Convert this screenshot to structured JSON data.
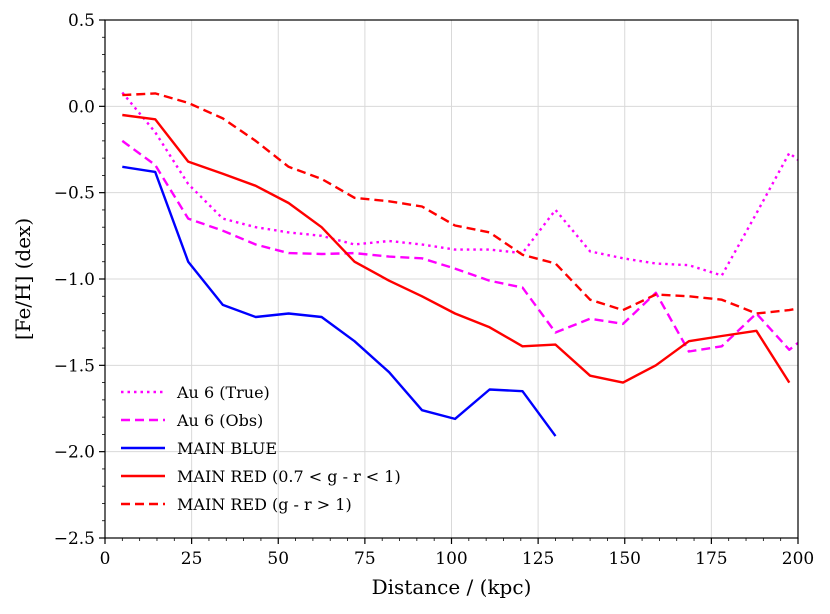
{
  "chart_data": {
    "type": "line",
    "title": "",
    "xlabel": "Distance / (kpc)",
    "ylabel": "[Fe/H] (dex)",
    "xlim": [
      0,
      200
    ],
    "ylim": [
      -2.5,
      0.5
    ],
    "grid": true,
    "legend_position": "lower-left",
    "x_ticks": [
      {
        "value": 0,
        "label": "0"
      },
      {
        "value": 25,
        "label": "25"
      },
      {
        "value": 50,
        "label": "50"
      },
      {
        "value": 75,
        "label": "75"
      },
      {
        "value": 100,
        "label": "100"
      },
      {
        "value": 125,
        "label": "125"
      },
      {
        "value": 150,
        "label": "150"
      },
      {
        "value": 175,
        "label": "175"
      },
      {
        "value": 200,
        "label": "200"
      }
    ],
    "y_ticks": [
      {
        "value": 0.5,
        "label": "0.5"
      },
      {
        "value": 0.0,
        "label": "0.0"
      },
      {
        "value": -0.5,
        "label": "−0.5"
      },
      {
        "value": -1.0,
        "label": "−1.0"
      },
      {
        "value": -1.5,
        "label": "−1.5"
      },
      {
        "value": -2.0,
        "label": "−2.0"
      },
      {
        "value": -2.5,
        "label": "−2.5"
      }
    ],
    "series": [
      {
        "name": "Au 6 (True)",
        "color": "#ff00ff",
        "style": "dotted",
        "x": [
          5,
          14.5,
          24,
          34,
          43.5,
          53,
          62.5,
          72,
          82,
          91.5,
          101,
          111,
          120.5,
          130,
          140,
          149.5,
          159,
          168.5,
          178,
          188,
          197.5,
          200
        ],
        "y": [
          0.08,
          -0.15,
          -0.45,
          -0.65,
          -0.7,
          -0.73,
          -0.75,
          -0.8,
          -0.78,
          -0.8,
          -0.83,
          -0.83,
          -0.85,
          -0.6,
          -0.84,
          -0.88,
          -0.91,
          -0.92,
          -0.98,
          -0.62,
          -0.27,
          -0.31
        ]
      },
      {
        "name": "Au 6 (Obs)",
        "color": "#ff00ff",
        "style": "dashed",
        "x": [
          5,
          14.5,
          24,
          34,
          43.5,
          53,
          62.5,
          72,
          82,
          91.5,
          101,
          111,
          120.5,
          130,
          140,
          149.5,
          159,
          168.5,
          178,
          188,
          197.5,
          200
        ],
        "y": [
          -0.2,
          -0.34,
          -0.65,
          -0.72,
          -0.8,
          -0.85,
          -0.855,
          -0.85,
          -0.87,
          -0.88,
          -0.94,
          -1.01,
          -1.05,
          -1.31,
          -1.23,
          -1.26,
          -1.08,
          -1.42,
          -1.39,
          -1.2,
          -1.41,
          -1.37
        ]
      },
      {
        "name": "MAIN BLUE",
        "color": "#0000ff",
        "style": "solid",
        "x": [
          5,
          14.5,
          24,
          34,
          43.5,
          53,
          62.5,
          72,
          82,
          91.5,
          101,
          111,
          120.5,
          130
        ],
        "y": [
          -0.35,
          -0.38,
          -0.9,
          -1.15,
          -1.22,
          -1.2,
          -1.22,
          -1.36,
          -1.54,
          -1.76,
          -1.81,
          -1.64,
          -1.65,
          -1.91
        ]
      },
      {
        "name": "MAIN RED (0.7 < g - r < 1)",
        "color": "#ff0000",
        "style": "solid",
        "x": [
          5,
          14.5,
          24,
          34,
          43.5,
          53,
          62.5,
          72,
          82,
          91.5,
          101,
          111,
          120.5,
          130,
          140,
          149.5,
          159,
          168.5,
          178,
          188,
          197.5
        ],
        "y": [
          -0.05,
          -0.075,
          -0.32,
          -0.39,
          -0.46,
          -0.56,
          -0.7,
          -0.9,
          -1.01,
          -1.1,
          -1.2,
          -1.28,
          -1.39,
          -1.38,
          -1.56,
          -1.6,
          -1.5,
          -1.36,
          -1.33,
          -1.3,
          -1.6
        ]
      },
      {
        "name": "MAIN RED (g - r > 1)",
        "color": "#ff0000",
        "style": "dashed",
        "x": [
          5,
          14.5,
          24,
          34,
          43.5,
          53,
          62.5,
          72,
          82,
          91.5,
          101,
          111,
          120.5,
          130,
          140,
          149.5,
          159,
          168.5,
          178,
          188,
          197.5,
          200
        ],
        "y": [
          0.065,
          0.075,
          0.02,
          -0.07,
          -0.2,
          -0.35,
          -0.42,
          -0.53,
          -0.55,
          -0.58,
          -0.69,
          -0.73,
          -0.86,
          -0.91,
          -1.12,
          -1.18,
          -1.09,
          -1.1,
          -1.12,
          -1.2,
          -1.18,
          -1.17
        ]
      }
    ]
  }
}
